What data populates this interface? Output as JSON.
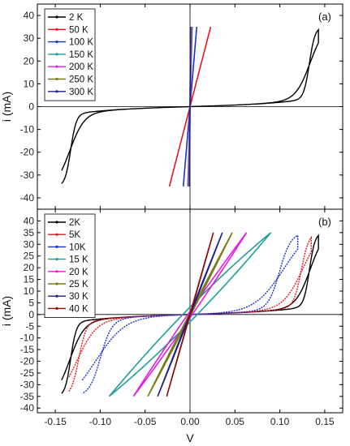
{
  "chart_data": {
    "type": "line",
    "xlabel": "V",
    "xlim": [
      -0.17,
      0.17
    ],
    "xticks": [
      "-0.15",
      "-0.10",
      "-0.05",
      "0.00",
      "0.05",
      "0.10",
      "0.15"
    ],
    "xtick_values": [
      -0.15,
      -0.1,
      -0.05,
      0.0,
      0.05,
      0.1,
      0.15
    ],
    "panels": [
      {
        "label": "(a)",
        "ylabel": "i (mA)",
        "ylim": [
          -45,
          45
        ],
        "yticks": [
          "40",
          "30",
          "20",
          "10",
          "0",
          "-10",
          "-20",
          "-30",
          "-40"
        ],
        "ytick_values": [
          40,
          30,
          20,
          10,
          0,
          -10,
          -20,
          -30,
          -40
        ],
        "legend_position": "top-left",
        "series": [
          {
            "name": "2 K",
            "color": "#000000",
            "kind": "hysteresis",
            "vmax": 0.143,
            "vsw": 0.133,
            "w": 0.009,
            "k": 0.06,
            "imax": 35
          },
          {
            "name": "50 K",
            "color": "#e8141b",
            "kind": "linear",
            "vmax": 0.023,
            "imax": 35
          },
          {
            "name": "100 K",
            "color": "#1a2fd0",
            "kind": "linear",
            "vmax": 0.0075,
            "imax": 35
          },
          {
            "name": "150 K",
            "color": "#1f9e97",
            "kind": "linear",
            "vmax": 0.0025,
            "imax": 35
          },
          {
            "name": "200 K",
            "color": "#e21be6",
            "kind": "linear",
            "vmax": 0.0018,
            "imax": 35
          },
          {
            "name": "250 K",
            "color": "#7a7a14",
            "kind": "linear",
            "vmax": 0.001,
            "imax": 35
          },
          {
            "name": "300 K",
            "color": "#1a1f8a",
            "kind": "linear",
            "vmax": 0.0005,
            "imax": 35
          }
        ]
      },
      {
        "label": "(b)",
        "ylabel": "i (mA)",
        "ylim": [
          -42,
          45
        ],
        "yticks": [
          "40",
          "35",
          "30",
          "25",
          "20",
          "15",
          "10",
          "5",
          "0",
          "-5",
          "-10",
          "-15",
          "-20",
          "-25",
          "-30",
          "-35",
          "-40"
        ],
        "ytick_values": [
          40,
          35,
          30,
          25,
          20,
          15,
          10,
          5,
          0,
          -5,
          -10,
          -15,
          -20,
          -25,
          -30,
          -35,
          -40
        ],
        "legend_position": "top-left",
        "series": [
          {
            "name": "2K",
            "color": "#000000",
            "kind": "hysteresis",
            "vmax": 0.143,
            "vsw": 0.133,
            "w": 0.009,
            "k": 0.06,
            "imax": 35
          },
          {
            "name": "5K",
            "color": "#e8141b",
            "kind": "hysteresis",
            "vmax": 0.135,
            "vsw": 0.124,
            "w": 0.012,
            "k": 0.055,
            "imax": 35
          },
          {
            "name": "10K",
            "color": "#1a2fd0",
            "kind": "hysteresis",
            "vmax": 0.12,
            "vsw": 0.1,
            "w": 0.018,
            "k": 0.045,
            "imax": 35
          },
          {
            "name": "15 K",
            "color": "#1f9e97",
            "kind": "loop",
            "vmax": 0.09,
            "imax": 35,
            "bulge": 0.09
          },
          {
            "name": "20 K",
            "color": "#e21be6",
            "kind": "loop",
            "vmax": 0.063,
            "imax": 35,
            "bulge": 0.04
          },
          {
            "name": "25 K",
            "color": "#7a7a14",
            "kind": "loop",
            "vmax": 0.047,
            "imax": 35,
            "bulge": 0.02
          },
          {
            "name": "30 K",
            "color": "#1a1f8a",
            "kind": "loop",
            "vmax": 0.036,
            "imax": 35,
            "bulge": 0.01
          },
          {
            "name": "40 K",
            "color": "#8b0a0a",
            "kind": "loop",
            "vmax": 0.026,
            "imax": 35,
            "bulge": 0.005
          }
        ]
      }
    ]
  }
}
